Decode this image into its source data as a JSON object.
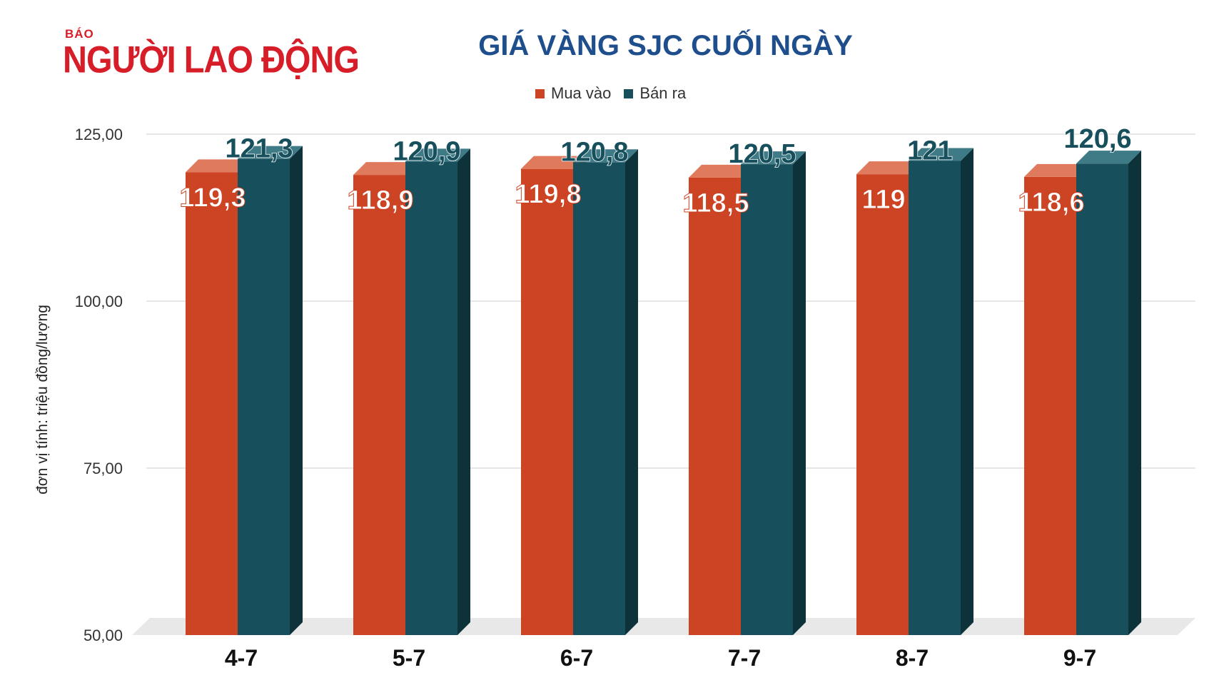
{
  "logo": {
    "top_text": "BÁO",
    "name": "NGƯỜI LAO ĐỘNG"
  },
  "colors": {
    "buy": "#cc4424",
    "buy_top": "#e07a5c",
    "buy_side": "#9e2f17",
    "sell": "#17505c",
    "sell_top": "#3f7a87",
    "sell_side": "#0e323a",
    "grid": "#dddddd",
    "floor": "#e8e8e8",
    "title": "#1f4e8c",
    "logo": "#d71e28"
  },
  "chart_data": {
    "type": "bar",
    "title": "GIÁ VÀNG SJC CUỐI NGÀY",
    "ylabel": "đơn vị tính: triệu đồng/lượng",
    "xlabel": "",
    "ylim": [
      50,
      125
    ],
    "yticks": [
      "50,00",
      "75,00",
      "100,00",
      "125,00"
    ],
    "ytick_values": [
      50,
      75,
      100,
      125
    ],
    "legend_position": "top-center",
    "grid": true,
    "categories": [
      "4-7",
      "5-7",
      "6-7",
      "7-7",
      "8-7",
      "9-7"
    ],
    "series": [
      {
        "name": "Mua vào",
        "values": [
          119.3,
          118.9,
          119.8,
          118.5,
          119,
          118.6
        ],
        "labels": [
          "119,3",
          "118,9",
          "119,8",
          "118,5",
          "119",
          "118,6"
        ]
      },
      {
        "name": "Bán ra",
        "values": [
          121.3,
          120.9,
          120.8,
          120.5,
          121,
          120.6
        ],
        "labels": [
          "121,3",
          "120,9",
          "120,8",
          "120,5",
          "121",
          "120,6"
        ]
      }
    ]
  }
}
